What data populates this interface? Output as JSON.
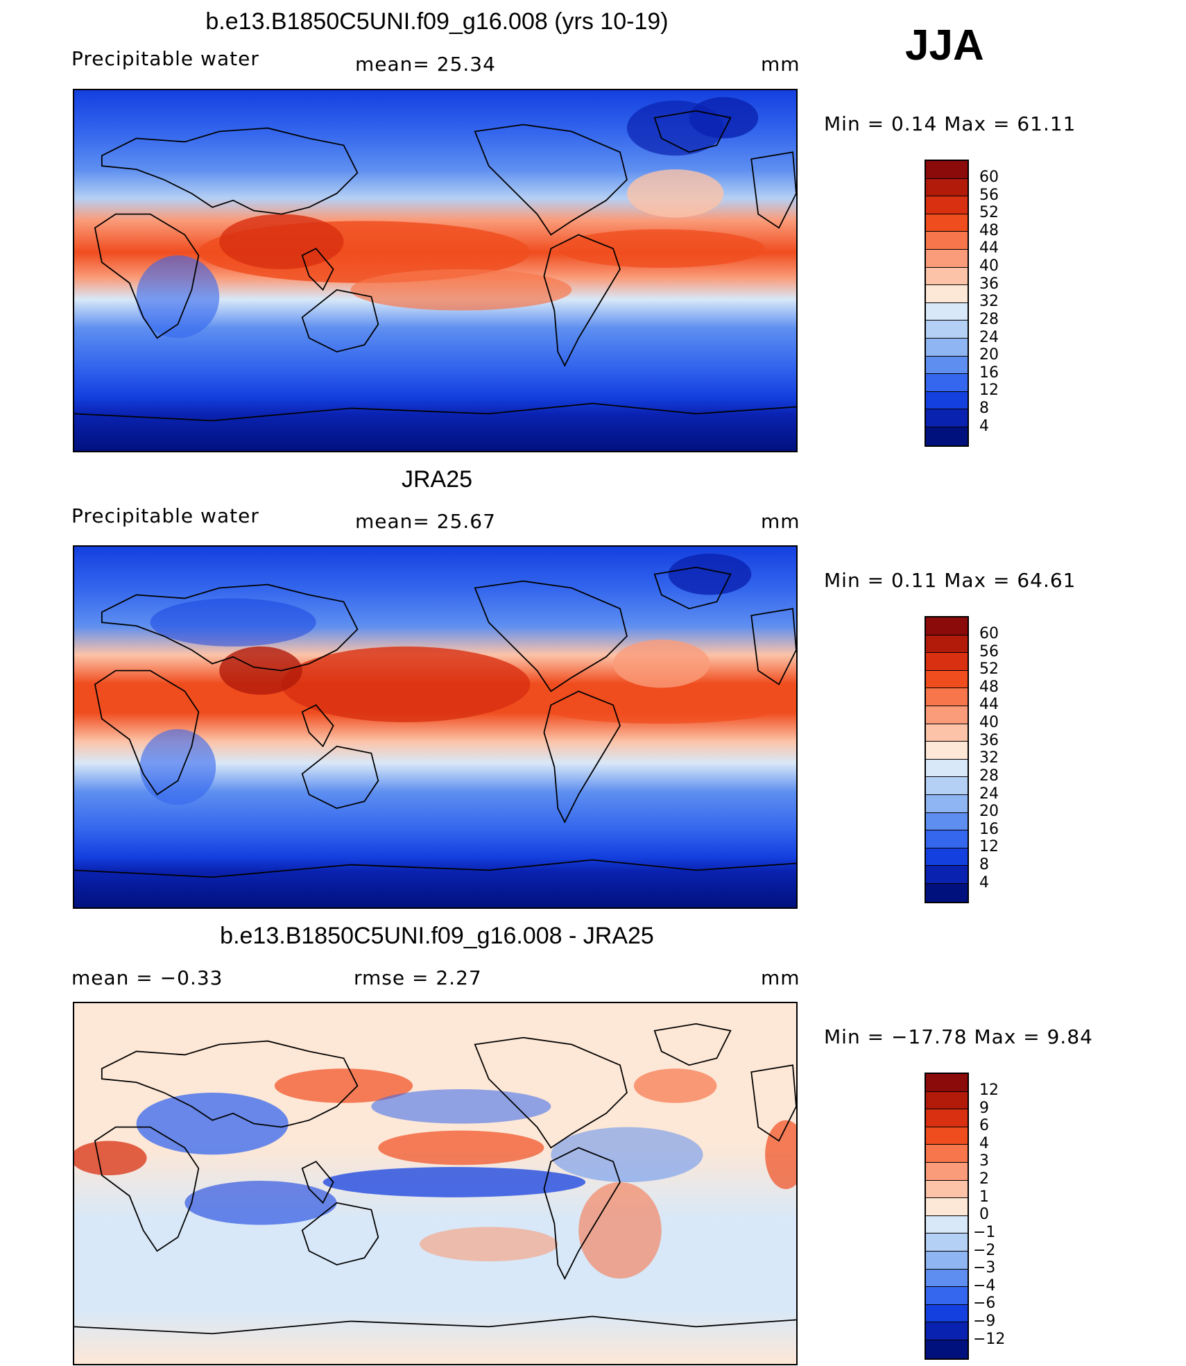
{
  "season": "JJA",
  "panels": [
    {
      "title": "b.e13.B1850C5UNI.f09_g16.008 (yrs 10-19)",
      "left_label": "Precipitable  water",
      "mid_label": "mean=   25.34",
      "units": "mm",
      "minmax": "Min  =     0.14  Max  =    61.11",
      "legend_levels": [
        "60",
        "56",
        "52",
        "48",
        "44",
        "40",
        "36",
        "32",
        "28",
        "24",
        "20",
        "16",
        "12",
        "8",
        "4"
      ],
      "legend_colors": [
        "#8b0a0a",
        "#b21a0a",
        "#d83010",
        "#f04d1f",
        "#f7764c",
        "#fa9c7a",
        "#fcc3a8",
        "#fde7d6",
        "#d8e8f8",
        "#b5d0f5",
        "#8fb6f2",
        "#5e8ff0",
        "#3567ee",
        "#1440df",
        "#0a22b0",
        "#00117e"
      ]
    },
    {
      "title": "JRA25",
      "left_label": "Precipitable  water",
      "mid_label": "mean=   25.67",
      "units": "mm",
      "minmax": "Min  =     0.11  Max  =    64.61",
      "legend_levels": [
        "60",
        "56",
        "52",
        "48",
        "44",
        "40",
        "36",
        "32",
        "28",
        "24",
        "20",
        "16",
        "12",
        "8",
        "4"
      ],
      "legend_colors": [
        "#8b0a0a",
        "#b21a0a",
        "#d83010",
        "#f04d1f",
        "#f7764c",
        "#fa9c7a",
        "#fcc3a8",
        "#fde7d6",
        "#d8e8f8",
        "#b5d0f5",
        "#8fb6f2",
        "#5e8ff0",
        "#3567ee",
        "#1440df",
        "#0a22b0",
        "#00117e"
      ]
    },
    {
      "title": "b.e13.B1850C5UNI.f09_g16.008 - JRA25",
      "left_label": "mean  =    −0.33",
      "mid_label": "rmse  =     2.27",
      "units": "mm",
      "minmax": "Min  = −17.78  Max  =      9.84",
      "legend_levels": [
        "12",
        "9",
        "6",
        "4",
        "3",
        "2",
        "1",
        "0",
        "−1",
        "−2",
        "−3",
        "−4",
        "−6",
        "−9",
        "−12"
      ],
      "legend_colors": [
        "#8b0a0a",
        "#b21a0a",
        "#d83010",
        "#f04d1f",
        "#f7764c",
        "#fa9c7a",
        "#fcc3a8",
        "#fde7d6",
        "#d8e8f8",
        "#b5d0f5",
        "#8fb6f2",
        "#5e8ff0",
        "#3567ee",
        "#1440df",
        "#0a22b0",
        "#00117e"
      ]
    }
  ]
}
